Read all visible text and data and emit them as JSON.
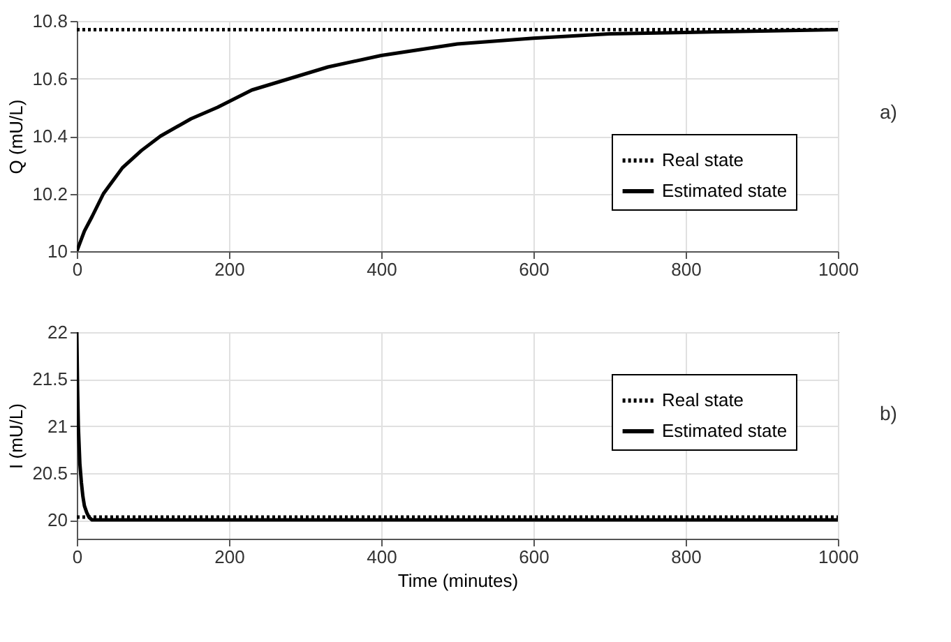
{
  "chart_data": [
    {
      "type": "line",
      "ylabel": "Q (mU/L)",
      "annotations": [
        "a)"
      ],
      "xlim": [
        0,
        1000
      ],
      "xticks": [
        0,
        200,
        400,
        600,
        800,
        1000
      ],
      "ylim": [
        10,
        10.8
      ],
      "yticks": [
        10,
        10.2,
        10.4,
        10.6,
        10.8
      ],
      "grid": true,
      "legend": "bottom right",
      "series": [
        {
          "name": "Real state",
          "color": "#000000",
          "line_style": "dotted",
          "x": [
            0,
            1000
          ],
          "values": [
            10.77,
            10.77
          ]
        },
        {
          "name": "Estimated state",
          "color": "#000000",
          "line_style": "solid",
          "x": [
            0,
            10,
            20,
            35,
            60,
            85,
            110,
            150,
            185,
            230,
            280,
            330,
            400,
            450,
            500,
            600,
            700,
            800,
            900,
            1000
          ],
          "values": [
            10,
            10.07,
            10.12,
            10.2,
            10.29,
            10.35,
            10.4,
            10.46,
            10.5,
            10.56,
            10.6,
            10.64,
            10.68,
            10.7,
            10.72,
            10.74,
            10.755,
            10.76,
            10.765,
            10.77
          ]
        }
      ]
    },
    {
      "type": "line",
      "xlabel": "Time (minutes)",
      "ylabel": "I (mU/L)",
      "annotations": [
        "b)"
      ],
      "xlim": [
        0,
        1000
      ],
      "xticks": [
        0,
        200,
        400,
        600,
        800,
        1000
      ],
      "ylim": [
        19.8,
        22
      ],
      "yticks": [
        20,
        20.5,
        21,
        21.5,
        22
      ],
      "grid": true,
      "legend": "top right",
      "series": [
        {
          "name": "Real state",
          "color": "#000000",
          "line_style": "dotted",
          "x": [
            0,
            1000
          ],
          "values": [
            20.03,
            20.03
          ]
        },
        {
          "name": "Estimated state",
          "color": "#000000",
          "line_style": "solid",
          "x": [
            0,
            1,
            2,
            4,
            6,
            8,
            10,
            13,
            16,
            20,
            1000
          ],
          "values": [
            22,
            21.4,
            21.0,
            20.6,
            20.4,
            20.25,
            20.15,
            20.08,
            20.03,
            20.0,
            20.0
          ]
        }
      ]
    }
  ]
}
